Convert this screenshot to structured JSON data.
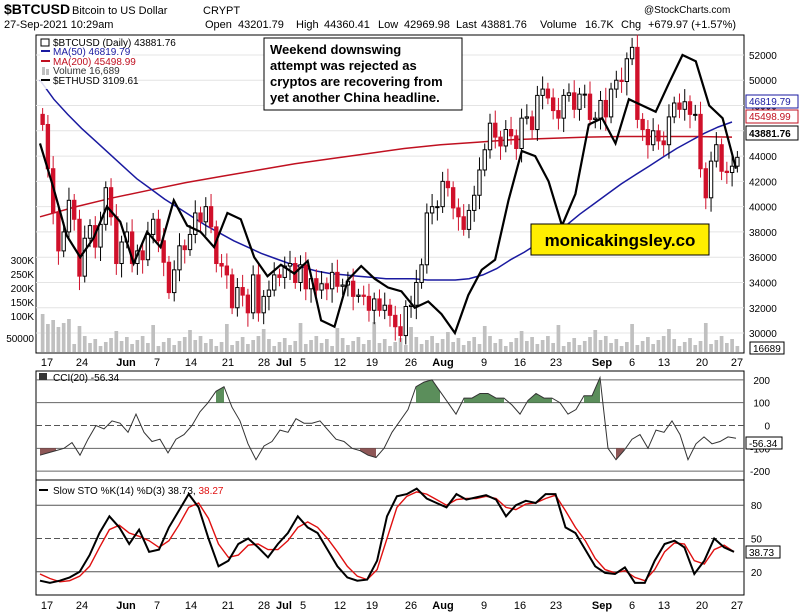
{
  "header": {
    "symbol": "$BTCUSD",
    "name": "Bitcoin to US Dollar",
    "exchange": "CRYPT",
    "date": "27-Sep-2021 10:29am",
    "open_label": "Open",
    "open": "43201.79",
    "high_label": "High",
    "high": "44360.41",
    "low_label": "Low",
    "low": "42969.98",
    "last_label": "Last",
    "last": "43881.76",
    "volume_label": "Volume",
    "volume": "16.7K",
    "chg_label": "Chg",
    "chg": "+679.97 (+1.57%)",
    "watermark": "@StockCharts.com"
  },
  "legend": {
    "price": "$BTCUSD (Daily) 43881.76",
    "ma50": "MA(50) 46819.79",
    "ma200": "MA(200) 45498.99",
    "volume": "Volume 16,689",
    "eth": "$ETHUSD 3109.61"
  },
  "annotation": {
    "lines": [
      "Weekend downswing",
      "attempt was rejected as",
      "cryptos are recovering from",
      "yet another China headline."
    ],
    "brand": "monicakingsley.co"
  },
  "colors": {
    "up": "#000000",
    "down": "#d0102a",
    "ma50": "#1a1aa0",
    "ma200": "#c01020",
    "eth": "#000000",
    "volume": "#c0c0c0",
    "cci_fill": "#3e7a3e",
    "cci_neg_fill": "#7a3a3a",
    "sto_k": "#000000",
    "sto_d": "#e01010",
    "brand_bg": "#ffee00"
  },
  "x_axis": {
    "labels": [
      "17",
      "24",
      "Jun",
      "7",
      "14",
      "21",
      "28",
      "Jul",
      "5",
      "12",
      "19",
      "26",
      "Aug",
      "9",
      "16",
      "23",
      "Sep",
      "6",
      "13",
      "20",
      "27"
    ],
    "bold": [
      "Jun",
      "Jul",
      "Aug",
      "Sep"
    ]
  },
  "chart_data": [
    {
      "type": "candlestick",
      "title": "$BTCUSD (Daily)",
      "y_ticks": [
        30000,
        32000,
        34000,
        36000,
        38000,
        40000,
        42000,
        44000,
        46000,
        48000,
        50000,
        52000
      ],
      "ylim": [
        28500,
        53500
      ],
      "volume_ticks": [
        "300K",
        "250K",
        "200K",
        "150K",
        "100K",
        "50000"
      ],
      "closes": [
        46500,
        43000,
        39500,
        36500,
        38000,
        40500,
        39000,
        34500,
        37500,
        38500,
        36800,
        38600,
        41500,
        39200,
        35500,
        37200,
        38000,
        35500,
        36500,
        35800,
        37800,
        39000,
        37300,
        35600,
        33200,
        35000,
        36900,
        36600,
        37800,
        39500,
        38800,
        40000,
        38400,
        35500,
        35300,
        34600,
        32000,
        33600,
        33000,
        31600,
        34600,
        31600,
        32900,
        33400,
        34600,
        34400,
        35300,
        35500,
        34000,
        35400,
        33500,
        34300,
        33400,
        33900,
        33500,
        34800,
        33700,
        33800,
        34100,
        32900,
        33000,
        32900,
        31800,
        32700,
        31800,
        32200,
        31400,
        30500,
        29800,
        32100,
        32200,
        34000,
        35400,
        39500,
        40000,
        40000,
        42000,
        41500,
        39900,
        39200,
        38200,
        39700,
        40900,
        42900,
        44500,
        46600,
        45500,
        44800,
        46100,
        45600,
        44600,
        47000,
        47100,
        46100,
        48800,
        49300,
        48600,
        47600,
        47000,
        48800,
        49000,
        47700,
        48900,
        48900,
        46900,
        47000,
        48400,
        47100,
        49300,
        50000,
        49900,
        51700,
        52600,
        46900,
        46100,
        44900,
        46000,
        45200,
        44900,
        47100,
        48200,
        47700,
        48300,
        47300,
        47300,
        43000,
        40700,
        43600,
        44900,
        42800,
        42700,
        43200,
        43900
      ],
      "ma50": [
        50000,
        48500,
        47300,
        46200,
        45200,
        44200,
        43200,
        42200,
        41400,
        40600,
        39900,
        39200,
        38500,
        37900,
        37300,
        36800,
        36300,
        35900,
        35500,
        35200,
        34900,
        34700,
        34600,
        34500,
        34400,
        34300,
        34300,
        34300,
        34200,
        34200,
        34200,
        34300,
        34600,
        35100,
        35800,
        36400,
        37100,
        37800,
        38500,
        39400,
        40200,
        41000,
        41800,
        42500,
        43200,
        43900,
        44600,
        45200,
        45800,
        46300,
        46700
      ],
      "ma200": [
        39200,
        40000,
        40700,
        41300,
        41900,
        42400,
        42900,
        43400,
        43800,
        44200,
        44600,
        44900,
        45100,
        45300,
        45400,
        45500,
        45550,
        45550,
        45550,
        45500
      ],
      "eth_overlay": [
        45000,
        41500,
        37700,
        36000,
        37500,
        40000,
        38800,
        35500,
        38000,
        36800,
        40500,
        38500,
        38000,
        36800,
        39500,
        39000,
        36000,
        34500,
        35400,
        34700,
        35700,
        31000,
        30500,
        34200,
        35300,
        34300,
        33600,
        33300,
        32000,
        32500,
        31500,
        30000,
        33000,
        35000,
        35800,
        40500,
        44400,
        44000,
        42000,
        38500,
        41000,
        46500,
        47000,
        45000,
        48500,
        48000,
        47500,
        49800,
        52000,
        51500,
        48000,
        47000,
        43000
      ]
    },
    {
      "type": "line",
      "title": "CCI(20)",
      "latest": "-56.34",
      "y_ticks": [
        200,
        100,
        0,
        -100,
        -200
      ],
      "ylim": [
        -230,
        230
      ],
      "values": [
        -130,
        -120,
        -110,
        -100,
        -75,
        -130,
        -60,
        0,
        -15,
        20,
        10,
        -30,
        50,
        -30,
        -70,
        -60,
        -120,
        -60,
        -40,
        0,
        60,
        100,
        150,
        170,
        80,
        20,
        -80,
        -150,
        -90,
        -70,
        -20,
        -30,
        30,
        10,
        10,
        20,
        -20,
        -60,
        -70,
        -100,
        -110,
        -130,
        -140,
        -100,
        -30,
        20,
        70,
        170,
        190,
        200,
        150,
        100,
        50,
        120,
        120,
        140,
        140,
        120,
        120,
        90,
        50,
        110,
        140,
        120,
        120,
        100,
        50,
        70,
        130,
        130,
        210,
        -100,
        -150,
        -110,
        -60,
        -40,
        -100,
        -20,
        -30,
        20,
        -40,
        -150,
        -80,
        -50,
        -80,
        -70,
        -50,
        -56
      ]
    },
    {
      "type": "line",
      "title": "Slow STO %K(14) %D(3)",
      "latest_k": "38.73",
      "latest_d": "38.27",
      "y_ticks": [
        80,
        50,
        20
      ],
      "ylim": [
        0,
        100
      ],
      "k": [
        12,
        10,
        12,
        15,
        20,
        35,
        55,
        70,
        60,
        45,
        58,
        38,
        40,
        60,
        75,
        90,
        78,
        50,
        25,
        30,
        45,
        50,
        42,
        33,
        45,
        55,
        70,
        60,
        55,
        40,
        25,
        15,
        12,
        13,
        30,
        70,
        88,
        90,
        95,
        86,
        82,
        78,
        90,
        85,
        87,
        89,
        85,
        70,
        80,
        84,
        82,
        90,
        90,
        60,
        55,
        40,
        25,
        19,
        18,
        24,
        10,
        10,
        30,
        45,
        48,
        42,
        18,
        30,
        50,
        42,
        38
      ],
      "d": [
        18,
        14,
        11,
        12,
        16,
        25,
        42,
        58,
        62,
        55,
        52,
        48,
        42,
        48,
        62,
        78,
        82,
        68,
        45,
        33,
        35,
        44,
        45,
        40,
        40,
        48,
        60,
        65,
        60,
        50,
        38,
        25,
        16,
        13,
        22,
        50,
        78,
        88,
        92,
        90,
        85,
        80,
        85,
        86,
        86,
        88,
        86,
        78,
        76,
        81,
        82,
        86,
        89,
        75,
        60,
        48,
        32,
        22,
        19,
        21,
        15,
        12,
        22,
        38,
        46,
        45,
        30,
        27,
        40,
        44,
        38
      ]
    }
  ]
}
